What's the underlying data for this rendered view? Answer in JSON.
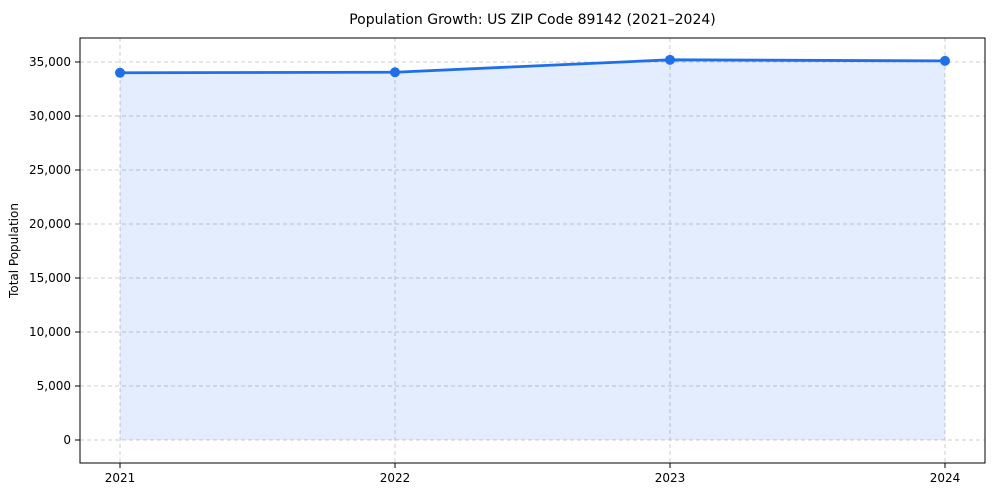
{
  "chart_data": {
    "type": "area",
    "title": "Population Growth: US ZIP Code 89142 (2021–2024)",
    "xlabel": "",
    "ylabel": "Total Population",
    "x": [
      2021,
      2022,
      2023,
      2024
    ],
    "x_tick_labels": [
      "2021",
      "2022",
      "2023",
      "2024"
    ],
    "series": [
      {
        "name": "Total Population",
        "values": [
          34000,
          34050,
          35200,
          35100
        ]
      }
    ],
    "y_ticks": [
      0,
      5000,
      10000,
      15000,
      20000,
      25000,
      30000,
      35000
    ],
    "y_tick_labels": [
      "0",
      "5,000",
      "10,000",
      "15,000",
      "20,000",
      "25,000",
      "30,000",
      "35,000"
    ],
    "ylim": [
      -2130,
      37220
    ],
    "grid": true,
    "grid_style": "dashed",
    "legend": "none",
    "marker": "circle",
    "colors": {
      "line": "#1f6feb",
      "marker": "#1f6feb",
      "fill": "#1f6feb",
      "grid": "#cccccc",
      "spine": "#000000",
      "text": "#000000",
      "background": "#ffffff"
    },
    "fill_opacity": 0.12
  }
}
